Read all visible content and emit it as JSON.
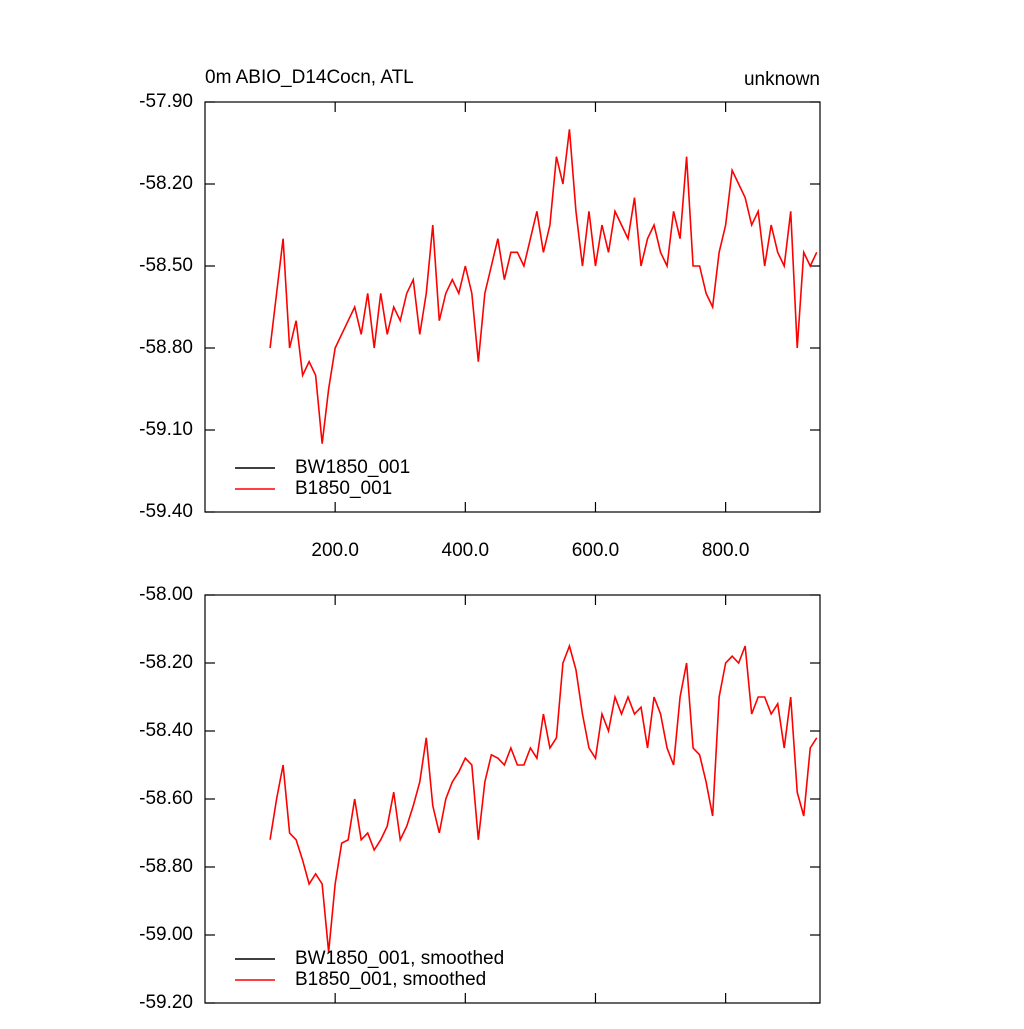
{
  "chart_data": [
    {
      "type": "line",
      "title": "0m ABIO_D14Cocn, ATL",
      "right_title": "unknown",
      "x": [
        100,
        110,
        120,
        130,
        140,
        150,
        160,
        170,
        180,
        190,
        200,
        210,
        220,
        230,
        240,
        250,
        260,
        270,
        280,
        290,
        300,
        310,
        320,
        330,
        340,
        350,
        360,
        370,
        380,
        390,
        400,
        410,
        420,
        430,
        440,
        450,
        460,
        470,
        480,
        490,
        500,
        510,
        520,
        530,
        540,
        550,
        560,
        570,
        580,
        590,
        600,
        610,
        620,
        630,
        640,
        650,
        660,
        670,
        680,
        690,
        700,
        710,
        720,
        730,
        740,
        750,
        760,
        770,
        780,
        790,
        800,
        810,
        820,
        830,
        840,
        850,
        860,
        870,
        880,
        890,
        900,
        910,
        920,
        930,
        940
      ],
      "series": [
        {
          "name": "BW1850_001",
          "color": "#000000",
          "values": [
            null,
            null,
            null,
            null,
            null,
            null,
            null,
            null,
            null,
            null,
            null,
            null,
            null,
            null,
            null,
            null,
            null,
            null,
            null,
            null,
            null,
            null,
            null,
            null,
            null,
            null,
            null,
            null,
            null,
            null,
            null,
            null,
            null,
            null,
            null,
            null,
            null,
            null,
            null,
            null,
            null,
            null,
            null,
            null,
            null,
            null,
            null,
            null,
            null,
            null,
            null,
            null,
            null,
            null,
            null,
            null,
            null,
            null,
            null,
            null,
            null,
            null,
            null,
            null,
            null,
            null,
            null,
            null,
            null,
            null,
            null,
            null,
            null,
            null,
            null,
            null,
            null,
            null,
            null,
            null,
            null,
            null,
            null,
            null,
            null
          ]
        },
        {
          "name": "B1850_001",
          "color": "#ff0000",
          "values": [
            -58.8,
            -58.6,
            -58.4,
            -58.8,
            -58.7,
            -58.9,
            -58.85,
            -58.9,
            -59.15,
            -58.95,
            -58.8,
            -58.75,
            -58.7,
            -58.65,
            -58.75,
            -58.6,
            -58.8,
            -58.6,
            -58.75,
            -58.65,
            -58.7,
            -58.6,
            -58.55,
            -58.75,
            -58.6,
            -58.35,
            -58.7,
            -58.6,
            -58.55,
            -58.6,
            -58.5,
            -58.6,
            -58.85,
            -58.6,
            -58.5,
            -58.4,
            -58.55,
            -58.45,
            -58.45,
            -58.5,
            -58.4,
            -58.3,
            -58.45,
            -58.35,
            -58.1,
            -58.2,
            -58.0,
            -58.3,
            -58.5,
            -58.3,
            -58.5,
            -58.35,
            -58.45,
            -58.3,
            -58.35,
            -58.4,
            -58.25,
            -58.5,
            -58.4,
            -58.35,
            -58.45,
            -58.5,
            -58.3,
            -58.4,
            -58.1,
            -58.5,
            -58.5,
            -58.6,
            -58.65,
            -58.45,
            -58.35,
            -58.15,
            -58.2,
            -58.25,
            -58.35,
            -58.3,
            -58.5,
            -58.35,
            -58.45,
            -58.5,
            -58.3,
            -58.8,
            -58.45,
            -58.5,
            -58.45
          ]
        }
      ],
      "xlim": [
        0,
        945
      ],
      "xticks": [
        {
          "value": 200,
          "label": "200.0"
        },
        {
          "value": 400,
          "label": "400.0"
        },
        {
          "value": 600,
          "label": "600.0"
        },
        {
          "value": 800,
          "label": "800.0"
        }
      ],
      "ylim": [
        -59.4,
        -57.9
      ],
      "yticks": [
        {
          "value": -59.4,
          "label": "-59.40"
        },
        {
          "value": -59.1,
          "label": "-59.10"
        },
        {
          "value": -58.8,
          "label": "-58.80"
        },
        {
          "value": -58.5,
          "label": "-58.50"
        },
        {
          "value": -58.2,
          "label": "-58.20"
        },
        {
          "value": -57.9,
          "label": "-57.90"
        }
      ],
      "legend": "lower left"
    },
    {
      "type": "line",
      "x": [
        100,
        110,
        120,
        130,
        140,
        150,
        160,
        170,
        180,
        190,
        200,
        210,
        220,
        230,
        240,
        250,
        260,
        270,
        280,
        290,
        300,
        310,
        320,
        330,
        340,
        350,
        360,
        370,
        380,
        390,
        400,
        410,
        420,
        430,
        440,
        450,
        460,
        470,
        480,
        490,
        500,
        510,
        520,
        530,
        540,
        550,
        560,
        570,
        580,
        590,
        600,
        610,
        620,
        630,
        640,
        650,
        660,
        670,
        680,
        690,
        700,
        710,
        720,
        730,
        740,
        750,
        760,
        770,
        780,
        790,
        800,
        810,
        820,
        830,
        840,
        850,
        860,
        870,
        880,
        890,
        900,
        910,
        920,
        930,
        940
      ],
      "series": [
        {
          "name": "BW1850_001, smoothed",
          "color": "#000000",
          "values": [
            null,
            null,
            null,
            null,
            null,
            null,
            null,
            null,
            null,
            null,
            null,
            null,
            null,
            null,
            null,
            null,
            null,
            null,
            null,
            null,
            null,
            null,
            null,
            null,
            null,
            null,
            null,
            null,
            null,
            null,
            null,
            null,
            null,
            null,
            null,
            null,
            null,
            null,
            null,
            null,
            null,
            null,
            null,
            null,
            null,
            null,
            null,
            null,
            null,
            null,
            null,
            null,
            null,
            null,
            null,
            null,
            null,
            null,
            null,
            null,
            null,
            null,
            null,
            null,
            null,
            null,
            null,
            null,
            null,
            null,
            null,
            null,
            null,
            null,
            null,
            null,
            null,
            null,
            null,
            null,
            null,
            null,
            null,
            null,
            null
          ]
        },
        {
          "name": "B1850_001, smoothed",
          "color": "#ff0000",
          "values": [
            -58.72,
            -58.6,
            -58.5,
            -58.7,
            -58.72,
            -58.78,
            -58.85,
            -58.82,
            -58.85,
            -59.05,
            -58.85,
            -58.73,
            -58.72,
            -58.6,
            -58.72,
            -58.7,
            -58.75,
            -58.72,
            -58.68,
            -58.58,
            -58.72,
            -58.68,
            -58.62,
            -58.55,
            -58.42,
            -58.62,
            -58.7,
            -58.6,
            -58.55,
            -58.52,
            -58.48,
            -58.5,
            -58.72,
            -58.55,
            -58.47,
            -58.48,
            -58.5,
            -58.45,
            -58.5,
            -58.5,
            -58.45,
            -58.48,
            -58.35,
            -58.45,
            -58.42,
            -58.2,
            -58.15,
            -58.22,
            -58.35,
            -58.45,
            -58.48,
            -58.35,
            -58.4,
            -58.3,
            -58.35,
            -58.3,
            -58.35,
            -58.33,
            -58.45,
            -58.3,
            -58.35,
            -58.45,
            -58.5,
            -58.3,
            -58.2,
            -58.45,
            -58.47,
            -58.55,
            -58.65,
            -58.3,
            -58.2,
            -58.18,
            -58.2,
            -58.15,
            -58.35,
            -58.3,
            -58.3,
            -58.35,
            -58.32,
            -58.45,
            -58.3,
            -58.58,
            -58.65,
            -58.45,
            -58.42
          ]
        }
      ],
      "xlim": [
        0,
        945
      ],
      "xticks": [
        200,
        400,
        600,
        800
      ],
      "ylim": [
        -59.2,
        -58.0
      ],
      "yticks": [
        {
          "value": -59.2,
          "label": "-59.20"
        },
        {
          "value": -59.0,
          "label": "-59.00"
        },
        {
          "value": -58.8,
          "label": "-58.80"
        },
        {
          "value": -58.6,
          "label": "-58.60"
        },
        {
          "value": -58.4,
          "label": "-58.40"
        },
        {
          "value": -58.2,
          "label": "-58.20"
        },
        {
          "value": -58.0,
          "label": "-58.00"
        }
      ],
      "legend": "lower left"
    }
  ]
}
